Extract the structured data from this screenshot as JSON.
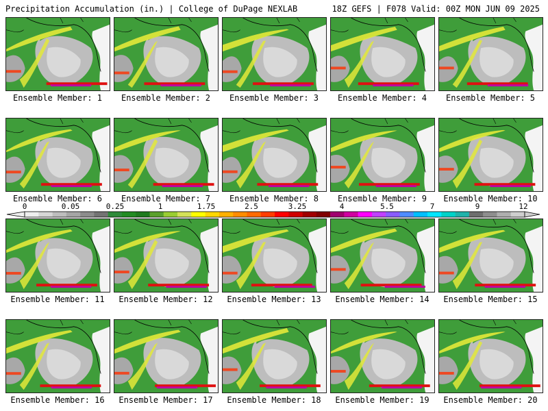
{
  "header": {
    "left": "Precipitation Accumulation (in.) | College of DuPage NEXLAB",
    "right": "18Z GEFS | F078 Valid: 00Z MON JUN 09 2025"
  },
  "panels": [
    {
      "label": "Ensemble Member: 1"
    },
    {
      "label": "Ensemble Member: 2"
    },
    {
      "label": "Ensemble Member: 3"
    },
    {
      "label": "Ensemble Member: 4"
    },
    {
      "label": "Ensemble Member: 5"
    },
    {
      "label": "Ensemble Member: 6"
    },
    {
      "label": "Ensemble Member: 7"
    },
    {
      "label": "Ensemble Member: 8"
    },
    {
      "label": "Ensemble Member: 9"
    },
    {
      "label": "Ensemble Member: 10"
    },
    {
      "label": "Ensemble Member: 11"
    },
    {
      "label": "Ensemble Member: 12"
    },
    {
      "label": "Ensemble Member: 13"
    },
    {
      "label": "Ensemble Member: 14"
    },
    {
      "label": "Ensemble Member: 15"
    },
    {
      "label": "Ensemble Member: 16"
    },
    {
      "label": "Ensemble Member: 17"
    },
    {
      "label": "Ensemble Member: 18"
    },
    {
      "label": "Ensemble Member: 19"
    },
    {
      "label": "Ensemble Member: 20"
    }
  ],
  "colorbar": {
    "tick_labels": [
      "0",
      "0.05",
      "0.25",
      "1",
      "1.75",
      "2.5",
      "3.25",
      "4",
      "5.5",
      "7",
      "9",
      "12"
    ],
    "colors": [
      "#eeeeee",
      "#d6d6d6",
      "#bdbdbd",
      "#a5a5a5",
      "#8c8c8c",
      "#737373",
      "#2e8b3a",
      "#228b22",
      "#1e7a1e",
      "#5aa02c",
      "#9acd32",
      "#d4e157",
      "#ffff00",
      "#ffd700",
      "#ffb000",
      "#ff8c00",
      "#ff6a00",
      "#ff3d00",
      "#ff0000",
      "#d00000",
      "#a00000",
      "#800000",
      "#a0006e",
      "#d000a0",
      "#ff00ff",
      "#c040ff",
      "#8a5cff",
      "#4f8cff",
      "#00bfff",
      "#00e5ff",
      "#00d2c8",
      "#20b2aa",
      "#6e6e6e",
      "#8e8e8e",
      "#aeaeae",
      "#cecece"
    ]
  }
}
